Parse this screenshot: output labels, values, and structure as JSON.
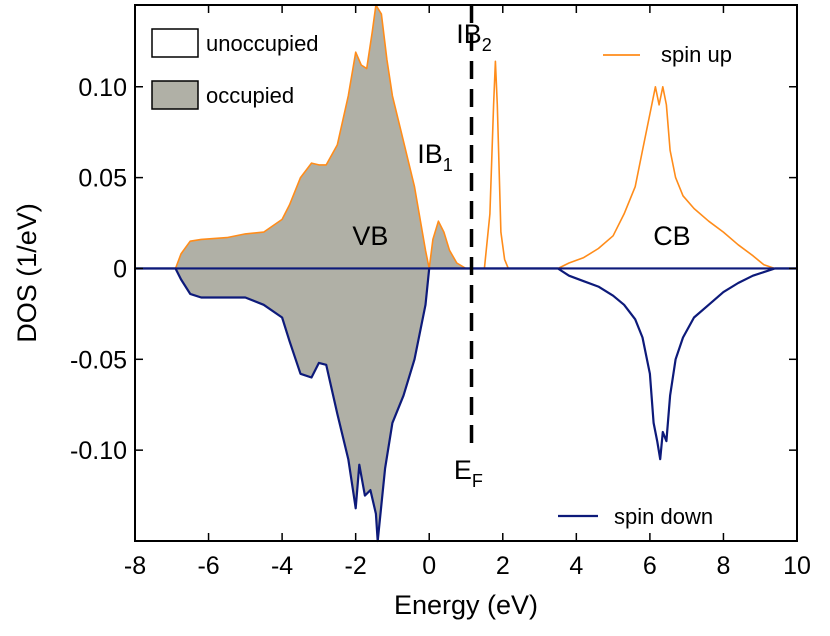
{
  "chart_data": {
    "type": "area",
    "xlabel": "Energy (eV)",
    "ylabel": "DOS (1/eV)",
    "xlim": [
      -8,
      10
    ],
    "ylim": [
      -0.15,
      0.145
    ],
    "xticks": [
      -8,
      -6,
      -4,
      -2,
      0,
      2,
      4,
      6,
      8,
      10
    ],
    "xtick_labels": [
      "-8",
      "-6",
      "-4",
      "-2",
      "0",
      "2",
      "4",
      "6",
      "8",
      "10"
    ],
    "yticks": [
      0.1,
      0.05,
      0,
      -0.05,
      -0.1
    ],
    "ytick_labels": [
      "0.10",
      "0.05",
      "0",
      "-0.05",
      "-0.10"
    ],
    "fermi_level": 1.15,
    "fill_legend": [
      {
        "label": "unoccupied",
        "color": "#ffffff"
      },
      {
        "label": "occupied",
        "color": "#b0b0a6"
      }
    ],
    "colors": {
      "spin_up": "#ff8c1a",
      "spin_down": "#0d1a7a",
      "occupied_fill": "#b0b0a6"
    },
    "annotations": {
      "vb": {
        "text": "VB",
        "x": -1.6,
        "y": 0.013
      },
      "cb": {
        "text": "CB",
        "x": 6.6,
        "y": 0.013
      },
      "ib1": {
        "text": "IB",
        "sub": "1",
        "x": 0.0,
        "y": 0.058
      },
      "ib2": {
        "text": "IB",
        "sub": "2",
        "x": 1.55,
        "y": 0.124
      },
      "ef": {
        "text": "E",
        "sub": "F",
        "x": 1.05,
        "y": -0.116
      }
    },
    "series": [
      {
        "name": "spin up",
        "color": "#ff8c1a",
        "x": [
          -8,
          -6.9,
          -6.75,
          -6.5,
          -6.2,
          -5.5,
          -5.0,
          -4.5,
          -4.0,
          -3.8,
          -3.5,
          -3.2,
          -3.0,
          -2.8,
          -2.5,
          -2.2,
          -2.0,
          -1.85,
          -1.7,
          -1.55,
          -1.45,
          -1.3,
          -1.15,
          -1.0,
          -0.7,
          -0.4,
          -0.1,
          0.0,
          0.1,
          0.25,
          0.4,
          0.55,
          0.75,
          1.0,
          1.35,
          1.5,
          1.65,
          1.75,
          1.8,
          1.85,
          1.95,
          2.05,
          2.15,
          2.3,
          3.5,
          3.8,
          4.2,
          4.6,
          5.0,
          5.3,
          5.6,
          5.8,
          6.0,
          6.15,
          6.25,
          6.35,
          6.45,
          6.55,
          6.7,
          6.9,
          7.2,
          7.6,
          8.0,
          8.4,
          8.8,
          9.1,
          9.4,
          10
        ],
        "values": [
          0,
          0,
          0.008,
          0.015,
          0.016,
          0.017,
          0.019,
          0.02,
          0.027,
          0.035,
          0.05,
          0.058,
          0.057,
          0.057,
          0.068,
          0.095,
          0.119,
          0.112,
          0.11,
          0.13,
          0.145,
          0.14,
          0.115,
          0.095,
          0.07,
          0.045,
          0.01,
          0.0,
          0.016,
          0.026,
          0.02,
          0.01,
          0.003,
          0.0,
          0.0,
          0.0,
          0.03,
          0.09,
          0.114,
          0.09,
          0.02,
          0.005,
          0.0,
          0.0,
          0.0,
          0.003,
          0.006,
          0.011,
          0.018,
          0.03,
          0.045,
          0.065,
          0.085,
          0.1,
          0.09,
          0.1,
          0.09,
          0.065,
          0.05,
          0.04,
          0.033,
          0.026,
          0.02,
          0.013,
          0.007,
          0.002,
          0.0,
          0
        ]
      },
      {
        "name": "spin down",
        "color": "#0d1a7a",
        "x": [
          -8,
          -6.9,
          -6.75,
          -6.5,
          -6.2,
          -5.5,
          -5.0,
          -4.5,
          -4.0,
          -3.8,
          -3.5,
          -3.2,
          -3.0,
          -2.8,
          -2.5,
          -2.2,
          -2.05,
          -2.0,
          -1.9,
          -1.75,
          -1.6,
          -1.45,
          -1.4,
          -1.3,
          -1.2,
          -1.0,
          -0.7,
          -0.4,
          -0.1,
          0.0,
          1.0,
          3.5,
          3.8,
          4.2,
          4.6,
          5.0,
          5.3,
          5.6,
          5.8,
          6.0,
          6.1,
          6.2,
          6.28,
          6.35,
          6.45,
          6.55,
          6.7,
          6.9,
          7.2,
          7.6,
          8.0,
          8.4,
          8.8,
          9.1,
          9.4,
          10
        ],
        "values": [
          0,
          0,
          -0.006,
          -0.014,
          -0.016,
          -0.016,
          -0.016,
          -0.02,
          -0.027,
          -0.04,
          -0.058,
          -0.06,
          -0.052,
          -0.053,
          -0.08,
          -0.105,
          -0.125,
          -0.132,
          -0.108,
          -0.125,
          -0.122,
          -0.135,
          -0.15,
          -0.13,
          -0.11,
          -0.085,
          -0.07,
          -0.05,
          -0.02,
          0.0,
          0.0,
          0.0,
          -0.004,
          -0.007,
          -0.01,
          -0.015,
          -0.02,
          -0.028,
          -0.038,
          -0.058,
          -0.085,
          -0.095,
          -0.105,
          -0.09,
          -0.095,
          -0.07,
          -0.05,
          -0.038,
          -0.027,
          -0.02,
          -0.013,
          -0.008,
          -0.004,
          -0.002,
          0.0,
          0
        ]
      }
    ]
  }
}
